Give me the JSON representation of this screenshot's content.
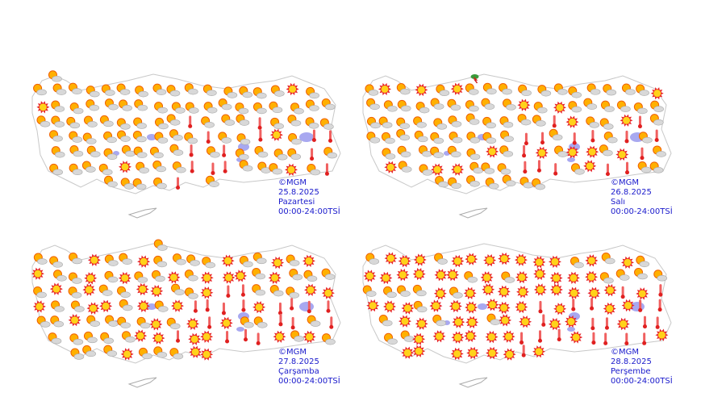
{
  "maps": [
    {
      "credit": "©MGM",
      "date": "25.8.2025",
      "day": "Pazartesi",
      "period": "00:00-24:00TSİ"
    },
    {
      "credit": "©MGM",
      "date": "26.8.2025",
      "day": "Salı",
      "period": "00:00-24:00TSİ"
    },
    {
      "credit": "©MGM",
      "date": "27.8.2025",
      "day": "Çarşamba",
      "period": "00:00-24:00TSİ"
    },
    {
      "credit": "©MGM",
      "date": "28.8.2025",
      "day": "Perşembe",
      "period": "00:00-24:00TSİ"
    }
  ]
}
